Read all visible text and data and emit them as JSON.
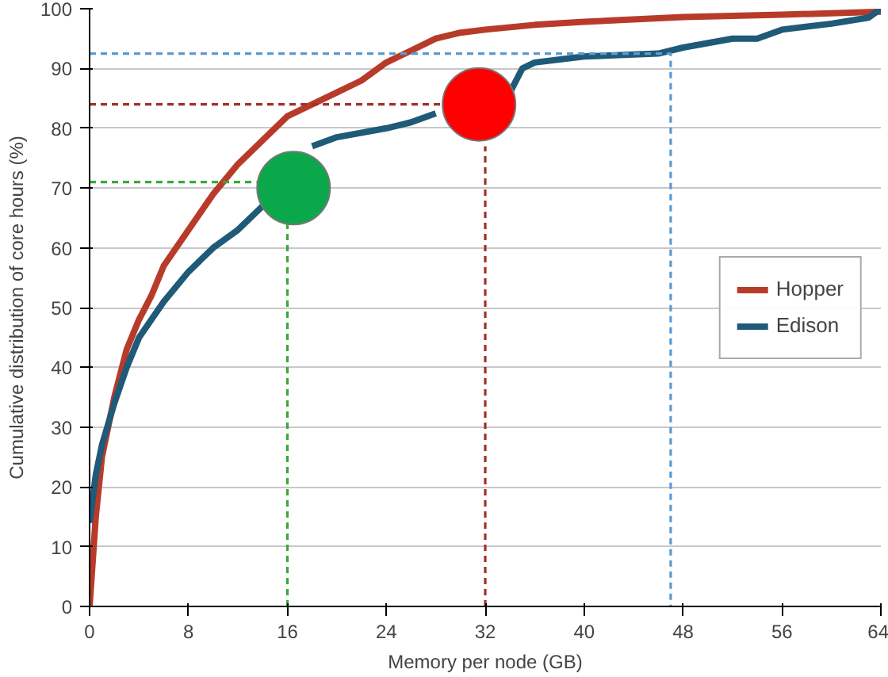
{
  "chart_data": {
    "type": "line",
    "xlabel": "Memory per node (GB)",
    "ylabel": "Cumulative distribution of core hours (%)",
    "xlim": [
      0,
      64
    ],
    "ylim": [
      0,
      100
    ],
    "xticks": [
      0,
      8,
      16,
      24,
      32,
      40,
      48,
      56,
      64
    ],
    "yticks": [
      0,
      10,
      20,
      30,
      40,
      50,
      60,
      70,
      80,
      90,
      100
    ],
    "grid": "y",
    "legend": "right",
    "marker": "none",
    "series": [
      {
        "name": "Hopper",
        "color": "#b83b2a",
        "x": [
          0,
          0.5,
          1,
          2,
          3,
          4,
          5,
          6,
          8,
          10,
          12,
          14,
          16,
          18,
          20,
          22,
          24,
          26,
          28,
          30,
          32,
          36,
          40,
          48,
          56,
          64
        ],
        "values": [
          0,
          15,
          25,
          35,
          43,
          48,
          52,
          57,
          63,
          69,
          74,
          78,
          82,
          84,
          86,
          88,
          91,
          93,
          95,
          96,
          96.5,
          97.3,
          97.8,
          98.6,
          99,
          99.5
        ]
      },
      {
        "name": "Edison",
        "color": "#1f5a78",
        "x": [
          0,
          0.5,
          1,
          2,
          3,
          4,
          6,
          8,
          10,
          12,
          14,
          16,
          17,
          18,
          20,
          24,
          26,
          28,
          30,
          32,
          33,
          34,
          35,
          36,
          40,
          46,
          48,
          52,
          54,
          56,
          60,
          63,
          64
        ],
        "values": [
          14,
          22,
          27,
          34,
          40,
          45,
          51,
          56,
          60,
          63,
          67,
          null,
          null,
          77,
          78.5,
          80,
          81,
          82.5,
          null,
          null,
          null,
          86,
          90,
          91,
          92,
          92.5,
          93.5,
          95,
          95,
          96.5,
          97.5,
          98.5,
          100
        ]
      },
      {
        "color": "#3aa83a",
        "line_style": "dashed",
        "x": [
          0,
          13.5
        ],
        "values": [
          71,
          71
        ]
      },
      {
        "color": "#3aa83a",
        "line_style": "dashed",
        "x": [
          16,
          16
        ],
        "values": [
          0,
          64
        ]
      },
      {
        "color": "#a0302a",
        "line_style": "dashed",
        "x": [
          0,
          28.5
        ],
        "values": [
          84,
          84
        ]
      },
      {
        "color": "#a0302a",
        "line_style": "dashed",
        "x": [
          32,
          32
        ],
        "values": [
          0,
          77
        ]
      },
      {
        "color": "#5a9ad0",
        "line_style": "dashed",
        "x": [
          0,
          47,
          47
        ],
        "values": [
          92.5,
          92.5,
          0
        ]
      },
      {
        "type": "scatter",
        "marker": "circle",
        "colors": [
          "#0aa84a",
          "#ff0000"
        ],
        "x": [
          16.5,
          31.5
        ],
        "values": [
          70,
          84
        ]
      }
    ]
  }
}
